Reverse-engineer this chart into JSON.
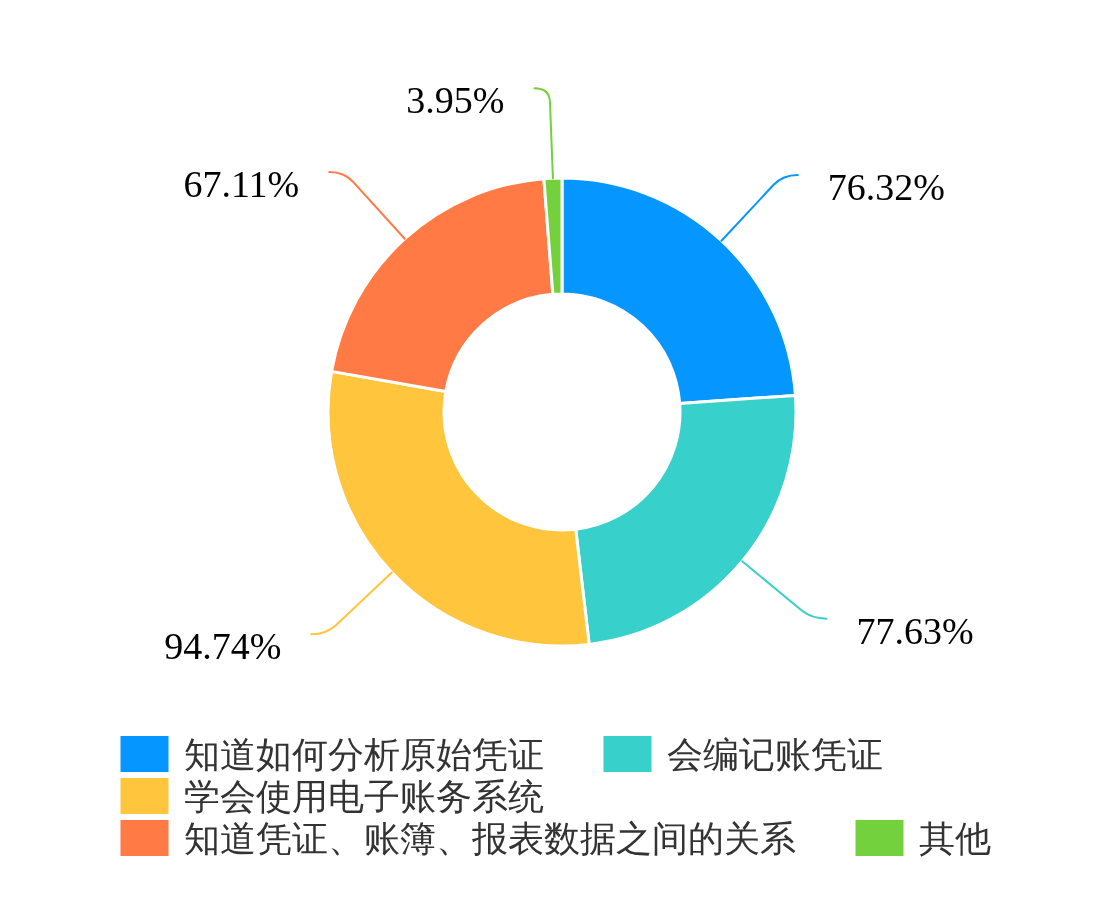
{
  "chart_data": {
    "type": "donut",
    "categories": [
      "知道如何分析原始凭证",
      "会编记账凭证",
      "学会使用电子账务系统",
      "知道凭证、账簿、报表数据之间的关系",
      "其他"
    ],
    "values": [
      76.32,
      77.63,
      94.74,
      67.11,
      3.95
    ],
    "colors": [
      "#0696ff",
      "#38d0ca",
      "#ffc53d",
      "#ff7a45",
      "#73d13d"
    ],
    "value_labels": [
      "76.32%",
      "77.63%",
      "94.74%",
      "67.11%",
      "3.95%"
    ],
    "legend": "bottom"
  }
}
